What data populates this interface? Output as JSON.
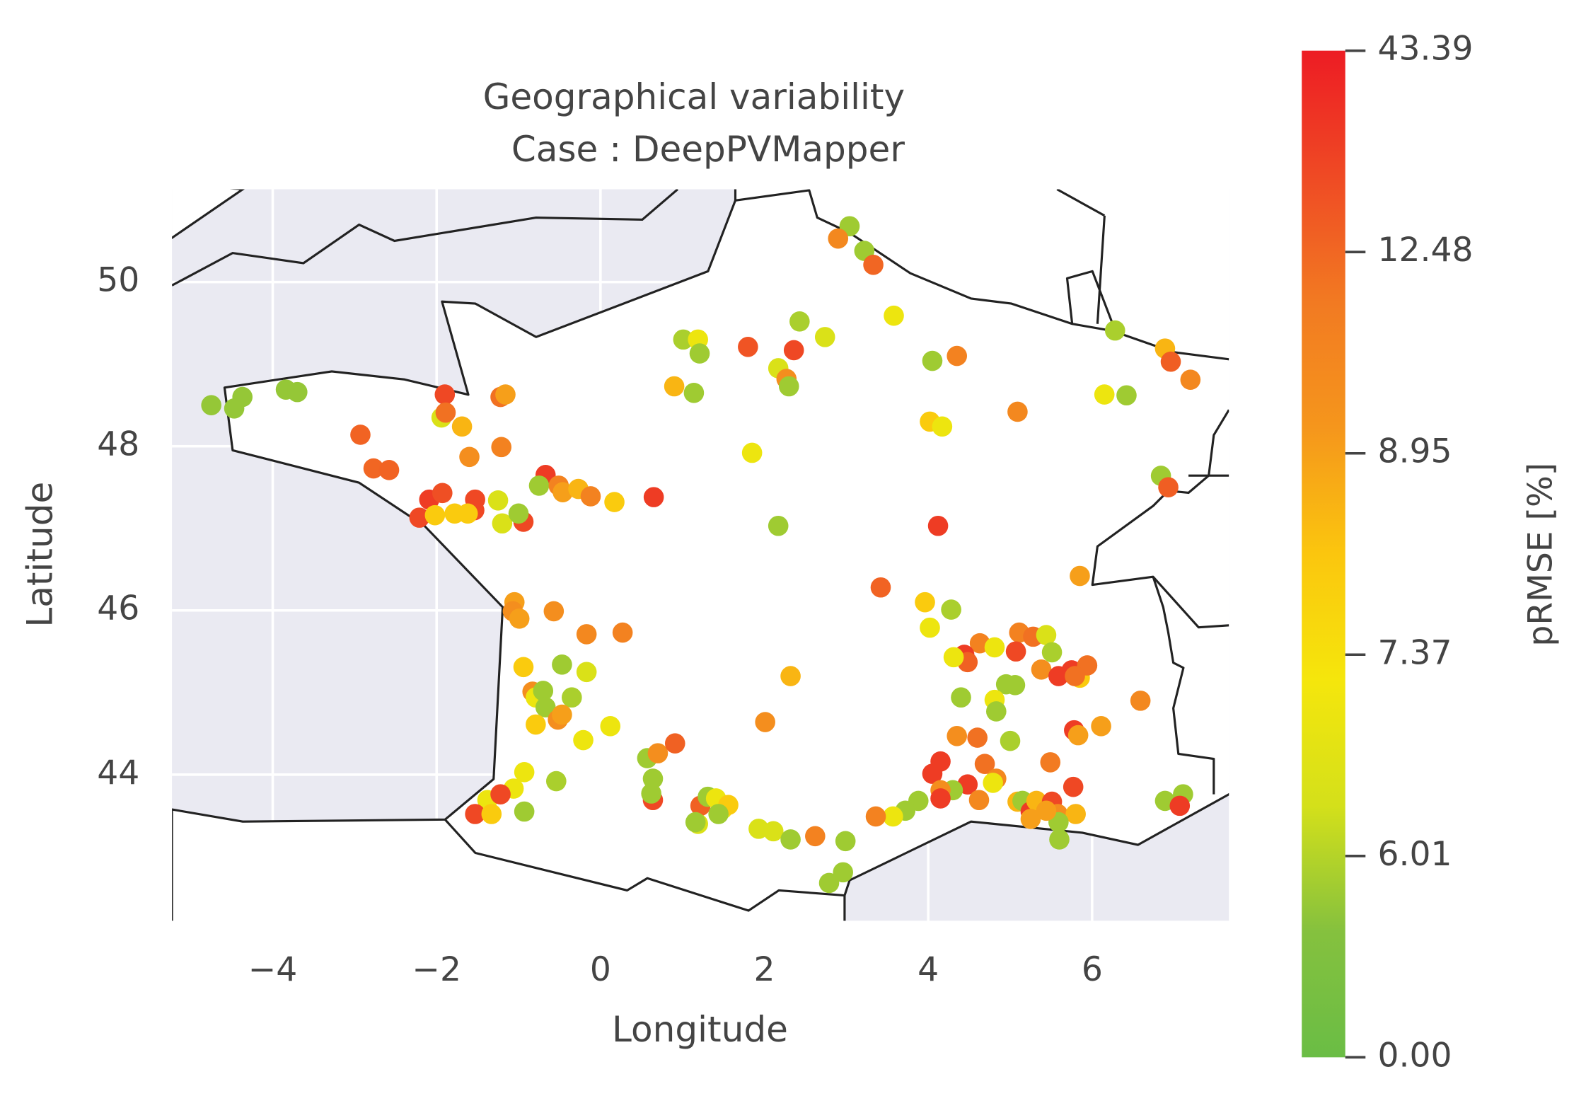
{
  "chart_data": {
    "type": "scatter",
    "title": "Geographical variability",
    "subtitle": "Case : DeepPVMapper",
    "x_label": "Longitude",
    "y_label": "Latitude",
    "xlim": [
      -5.23,
      7.67
    ],
    "ylim": [
      42.22,
      51.13
    ],
    "xticks": [
      {
        "value": -4,
        "label": "−4"
      },
      {
        "value": -2,
        "label": "−2"
      },
      0,
      2,
      4,
      6
    ],
    "yticks": [
      44,
      46,
      48,
      50
    ],
    "grid": true,
    "colorbar": {
      "label": "pRMSE [%]",
      "ticks": [
        {
          "value": 0,
          "label": "0.00"
        },
        {
          "value": 6.01,
          "label": "6.01"
        },
        {
          "value": 7.37,
          "label": "7.37"
        },
        {
          "value": 8.95,
          "label": "8.95"
        },
        {
          "value": 12.48,
          "label": "12.48"
        },
        {
          "value": 43.39,
          "label": "43.39"
        }
      ],
      "colors": [
        "#6abd45",
        "#85c13e",
        "#d4e01a",
        "#f5e60c",
        "#fbc60e",
        "#f5961c",
        "#f27a22",
        "#ef4a24",
        "#ed1c24"
      ]
    },
    "x": [
      -4.75,
      -4.37,
      -4.47,
      -3.84,
      -3.7,
      -2.93,
      -2.77,
      -2.58,
      -1.9,
      -1.94,
      -1.89,
      -1.69,
      -1.22,
      -1.16,
      -1.21,
      -1.6,
      -2.09,
      -1.93,
      -2.21,
      -2.02,
      -1.78,
      -1.53,
      -1.54,
      -1.62,
      -1.25,
      -1.2,
      -0.94,
      -1.0,
      -0.67,
      -0.75,
      -0.51,
      -0.46,
      -0.27,
      -0.12,
      0.17,
      0.65,
      -1.05,
      -1.07,
      -0.99,
      -0.57,
      -0.17,
      0.27,
      -0.94,
      -0.47,
      -0.17,
      -0.83,
      -0.79,
      -0.7,
      -0.35,
      -0.67,
      -0.52,
      -0.47,
      -0.79,
      0.12,
      -0.21,
      -0.93,
      -0.54,
      -1.06,
      -1.38,
      -1.22,
      -1.53,
      -1.33,
      -0.93,
      0.57,
      0.7,
      0.91,
      0.64,
      0.64,
      0.62,
      1.22,
      1.31,
      1.41,
      1.49,
      1.56,
      1.44,
      1.19,
      1.16,
      1.93,
      2.11,
      2.32,
      2.62,
      2.99,
      2.79,
      2.96,
      2.01,
      2.32,
      1.01,
      1.19,
      1.21,
      0.9,
      1.14,
      1.8,
      2.36,
      2.43,
      2.74,
      2.17,
      2.27,
      2.3,
      1.85,
      2.17,
      3.04,
      2.9,
      3.22,
      3.33,
      3.58,
      4.05,
      4.35,
      4.02,
      4.17,
      5.09,
      4.12,
      3.42,
      3.96,
      4.28,
      4.02,
      5.85,
      6.28,
      6.89,
      6.96,
      7.2,
      6.15,
      6.42,
      6.84,
      6.93,
      4.63,
      4.44,
      4.48,
      4.31,
      4.81,
      5.11,
      5.07,
      5.28,
      5.44,
      5.51,
      5.38,
      5.59,
      5.75,
      5.85,
      5.94,
      4.95,
      5.06,
      4.81,
      4.83,
      4.4,
      6.59,
      6.11,
      5.78,
      5.83,
      4.35,
      4.6,
      5.0,
      4.15,
      4.05,
      4.69,
      5.49,
      4.48,
      4.83,
      4.79,
      4.3,
      4.15,
      4.15,
      4.62,
      5.09,
      5.15,
      5.25,
      5.32,
      5.51,
      5.77,
      5.25,
      5.58,
      5.8,
      5.6,
      5.59,
      5.44,
      3.88,
      3.72,
      3.57,
      3.36,
      6.89,
      7.11,
      7.07,
      5.79
    ],
    "y": [
      48.5,
      48.6,
      48.46,
      48.69,
      48.66,
      48.14,
      47.73,
      47.71,
      48.63,
      48.35,
      48.41,
      48.24,
      48.6,
      48.63,
      47.99,
      47.87,
      47.35,
      47.43,
      47.13,
      47.16,
      47.18,
      47.35,
      47.22,
      47.18,
      47.34,
      47.06,
      47.08,
      47.18,
      47.65,
      47.52,
      47.52,
      47.44,
      47.48,
      47.39,
      47.32,
      47.38,
      46.1,
      45.99,
      45.9,
      45.99,
      45.71,
      45.73,
      45.31,
      45.34,
      45.25,
      45.01,
      44.94,
      45.02,
      44.94,
      44.82,
      44.67,
      44.73,
      44.61,
      44.59,
      44.42,
      44.03,
      43.92,
      43.83,
      43.69,
      43.76,
      43.52,
      43.52,
      43.55,
      44.2,
      44.26,
      44.38,
      43.95,
      43.69,
      43.77,
      43.62,
      43.73,
      43.71,
      43.58,
      43.63,
      43.52,
      43.4,
      43.42,
      43.34,
      43.31,
      43.21,
      43.25,
      43.19,
      42.68,
      42.81,
      44.64,
      45.2,
      49.3,
      49.3,
      49.13,
      48.73,
      48.65,
      49.21,
      49.17,
      49.52,
      49.33,
      48.95,
      48.82,
      48.73,
      47.92,
      47.03,
      50.68,
      50.53,
      50.38,
      50.21,
      49.59,
      49.04,
      49.1,
      48.3,
      48.24,
      48.42,
      47.03,
      46.28,
      46.1,
      46.01,
      45.79,
      46.42,
      49.41,
      49.19,
      49.03,
      48.81,
      48.63,
      48.62,
      47.64,
      47.5,
      45.6,
      45.46,
      45.37,
      45.43,
      45.55,
      45.73,
      45.5,
      45.68,
      45.7,
      45.49,
      45.28,
      45.2,
      45.27,
      45.18,
      45.33,
      45.1,
      45.09,
      44.91,
      44.77,
      44.94,
      44.9,
      44.59,
      44.54,
      44.48,
      44.47,
      44.45,
      44.41,
      44.16,
      44.01,
      44.13,
      44.15,
      43.88,
      43.95,
      43.9,
      43.81,
      43.81,
      43.71,
      43.69,
      43.67,
      43.68,
      43.55,
      43.68,
      43.67,
      43.85,
      43.46,
      43.52,
      43.52,
      43.21,
      43.42,
      43.56,
      43.68,
      43.56,
      43.49,
      43.49,
      43.68,
      43.76,
      43.62,
      45.2
    ],
    "values": [
      4.5,
      4.5,
      4.5,
      4.5,
      4.5,
      14,
      13,
      14,
      25,
      6.5,
      12,
      8.5,
      12,
      9,
      11,
      10,
      30,
      22,
      25,
      8,
      8,
      25,
      25,
      8,
      6.5,
      6.5,
      25,
      5,
      30,
      5,
      11,
      9,
      8.5,
      11,
      8,
      30,
      9,
      10,
      9,
      10,
      10.5,
      11,
      8,
      5,
      6.5,
      10,
      7,
      5,
      5.5,
      5,
      10,
      9,
      8,
      7,
      7,
      7,
      5.5,
      7,
      7,
      25,
      25,
      8,
      5,
      5,
      10,
      15,
      5,
      25,
      5,
      15,
      5,
      7,
      7,
      8,
      5,
      6.5,
      5,
      6.5,
      6.5,
      5,
      11,
      5,
      5,
      5,
      10,
      8.5,
      5.5,
      7,
      5,
      8.5,
      5,
      20,
      25,
      5.5,
      6.5,
      6.5,
      10,
      5,
      7,
      5,
      5,
      10.5,
      5,
      13,
      7,
      5,
      11,
      8,
      7,
      10.5,
      30,
      14,
      8,
      5.5,
      7,
      9,
      5.5,
      8.5,
      16,
      10.5,
      7,
      5,
      5,
      16,
      11,
      30,
      15,
      7,
      7,
      11,
      25,
      12,
      6.5,
      5.5,
      10,
      30,
      30,
      8,
      12,
      5,
      5,
      7,
      5,
      5,
      10.5,
      9,
      30,
      9,
      10,
      12,
      5.5,
      30,
      30,
      12,
      11.5,
      30,
      10.5,
      7,
      5,
      10,
      30,
      10.5,
      8.5,
      5,
      30,
      8.5,
      25,
      25,
      9,
      10,
      8.5,
      5,
      5,
      9,
      5,
      5,
      7,
      11,
      5,
      5,
      30,
      12
    ]
  }
}
